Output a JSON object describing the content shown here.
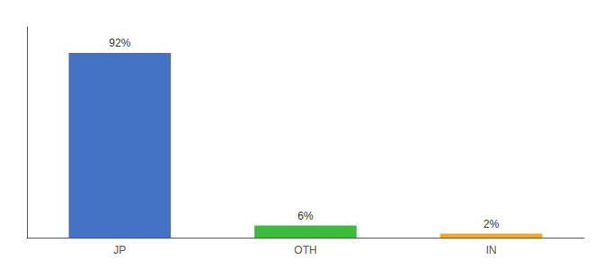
{
  "chart_data": {
    "type": "bar",
    "categories": [
      "JP",
      "OTH",
      "IN"
    ],
    "values": [
      92,
      6,
      2
    ],
    "value_labels": [
      "92%",
      "6%",
      "2%"
    ],
    "colors": [
      "#4472c4",
      "#3dbb3d",
      "#f5a623"
    ],
    "data_labels": true,
    "ylim": [
      0,
      105
    ],
    "tick_labels": "x",
    "grid": false
  }
}
